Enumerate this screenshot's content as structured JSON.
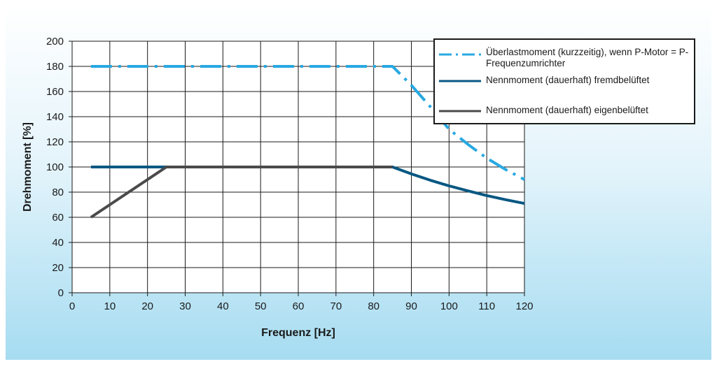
{
  "chart_data": {
    "type": "line",
    "title": "",
    "xlabel": "Frequenz [Hz]",
    "ylabel": "Drehmoment [%]",
    "xlim": [
      0,
      120
    ],
    "ylim": [
      0,
      200
    ],
    "xticks": [
      "0",
      "10",
      "20",
      "30",
      "40",
      "50",
      "60",
      "70",
      "80",
      "90",
      "100",
      "110",
      "120"
    ],
    "yticks": [
      "0",
      "20",
      "40",
      "60",
      "80",
      "100",
      "120",
      "140",
      "160",
      "180",
      "200"
    ],
    "grid": true,
    "legend_position": "top-right",
    "series": [
      {
        "name": "Überlastmoment (kurzzeitig), wenn P-Motor = P-Frequenzumrichter",
        "color": "#27a9e1",
        "style": "dash-dot",
        "points": [
          [
            5,
            180
          ],
          [
            85,
            180
          ],
          [
            90,
            165
          ],
          [
            95,
            148
          ],
          [
            100,
            130
          ],
          [
            105,
            118
          ],
          [
            110,
            107
          ],
          [
            115,
            98
          ],
          [
            120,
            90
          ]
        ]
      },
      {
        "name": "Nennmoment (dauerhaft) fremdbelüftet",
        "color": "#075783",
        "style": "solid",
        "points": [
          [
            5,
            100
          ],
          [
            85,
            100
          ],
          [
            90,
            94.5
          ],
          [
            95,
            89.5
          ],
          [
            100,
            85
          ],
          [
            105,
            81
          ],
          [
            110,
            77.3
          ],
          [
            115,
            74
          ],
          [
            120,
            71
          ]
        ]
      },
      {
        "name": "Nennmoment (dauerhaft) eigenbelüftet",
        "color": "#4a4a4a",
        "style": "solid",
        "points": [
          [
            5,
            60
          ],
          [
            25,
            100
          ],
          [
            85,
            100
          ]
        ]
      }
    ]
  }
}
